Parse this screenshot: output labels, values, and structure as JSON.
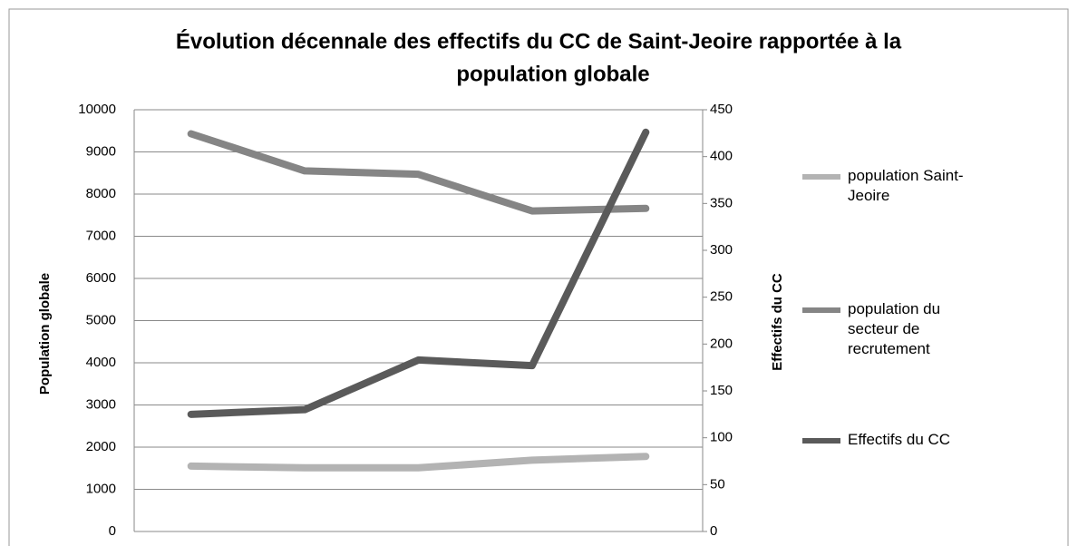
{
  "chart_data": {
    "type": "line",
    "title": [
      "Évolution décennale des effectifs du CC de Saint-Jeoire rapportée à la",
      "population globale"
    ],
    "ylabel": "Population globale",
    "y2label": "Effectifs du CC",
    "categories": [
      null,
      null,
      null,
      null,
      null
    ],
    "ylim": [
      0,
      10000
    ],
    "yticks": [
      0,
      1000,
      2000,
      3000,
      4000,
      5000,
      6000,
      7000,
      8000,
      9000,
      10000
    ],
    "y2lim": [
      0,
      450
    ],
    "y2ticks": [
      0,
      50,
      100,
      150,
      200,
      250,
      300,
      350,
      400,
      450
    ],
    "grid": true,
    "legend": "right",
    "series": [
      {
        "name": "population Saint-Jeoire",
        "color": "#b3b3b3",
        "values": [
          1550,
          1510,
          1510,
          1690,
          1780
        ]
      },
      {
        "name": "population du secteur de recrutement",
        "color": "#858585",
        "values": [
          9430,
          8550,
          8470,
          7600,
          7660
        ]
      },
      {
        "name": "Effectifs du CC",
        "color": "#5a5a5a",
        "axis": "y2",
        "values": [
          125,
          130,
          183,
          177,
          426
        ]
      }
    ]
  }
}
